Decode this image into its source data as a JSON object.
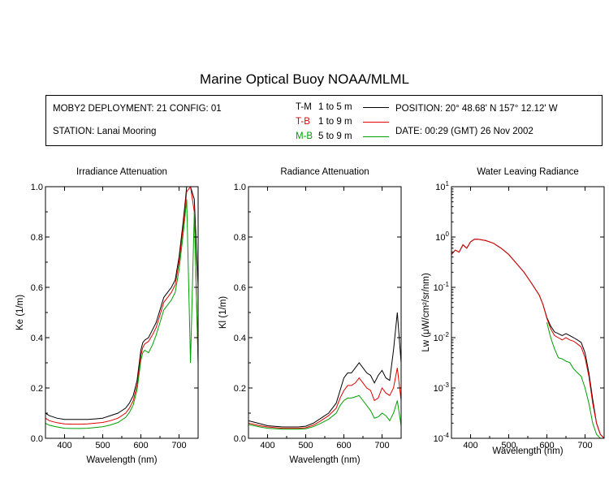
{
  "title": "Marine Optical Buoy NOAA/MLML",
  "info": {
    "deployment": "MOBY2 DEPLOYMENT: 21 CONFIG: 01",
    "station": "STATION: Lanai Mooring",
    "position": "POSITION: 20° 48.68' N   157° 12.12' W",
    "date": "DATE: 00:29 (GMT) 26 Nov 2002"
  },
  "legend": [
    {
      "code": "T-M",
      "range": "1 to 5  m",
      "color": "#000000"
    },
    {
      "code": "T-B",
      "range": "1 to 9  m",
      "color": "#e00000"
    },
    {
      "code": "M-B",
      "range": "5 to 9  m",
      "color": "#00a000"
    }
  ],
  "chart_data": [
    {
      "type": "line",
      "title": "Irradiance Attenuation",
      "xlabel": "Wavelength (nm)",
      "ylabel": "Ke  (1/m)",
      "xlim": [
        350,
        750
      ],
      "ylim": [
        0,
        1.0
      ],
      "xticks": [
        400,
        500,
        600,
        700
      ],
      "yticks": [
        0.0,
        0.2,
        0.4,
        0.6,
        0.8,
        1.0
      ],
      "yticklabels": [
        "0.0",
        "0.2",
        "0.4",
        "0.6",
        "0.8",
        "1.0"
      ],
      "series": [
        {
          "code": "T-M",
          "color": "#000000",
          "x": [
            350,
            360,
            380,
            400,
            420,
            440,
            460,
            480,
            500,
            520,
            540,
            560,
            570,
            580,
            590,
            600,
            605,
            610,
            620,
            630,
            640,
            650,
            660,
            670,
            680,
            690,
            700,
            710,
            715,
            720,
            730,
            740,
            750
          ],
          "y": [
            0.1,
            0.09,
            0.08,
            0.075,
            0.075,
            0.075,
            0.075,
            0.077,
            0.08,
            0.09,
            0.1,
            0.12,
            0.14,
            0.17,
            0.23,
            0.35,
            0.38,
            0.39,
            0.4,
            0.43,
            0.46,
            0.51,
            0.56,
            0.58,
            0.6,
            0.63,
            0.72,
            0.85,
            0.92,
            1.0,
            1.0,
            0.95,
            0.6
          ]
        },
        {
          "code": "T-B",
          "color": "#e00000",
          "x": [
            350,
            360,
            380,
            400,
            420,
            440,
            460,
            480,
            500,
            520,
            540,
            560,
            570,
            580,
            590,
            600,
            605,
            610,
            620,
            630,
            640,
            650,
            660,
            670,
            680,
            690,
            700,
            710,
            715,
            720,
            730,
            740,
            750
          ],
          "y": [
            0.08,
            0.07,
            0.062,
            0.057,
            0.056,
            0.056,
            0.057,
            0.06,
            0.063,
            0.07,
            0.08,
            0.1,
            0.12,
            0.15,
            0.21,
            0.33,
            0.36,
            0.375,
            0.385,
            0.41,
            0.44,
            0.49,
            0.54,
            0.56,
            0.58,
            0.61,
            0.7,
            0.83,
            0.9,
            0.98,
            1.0,
            0.9,
            0.3
          ]
        },
        {
          "code": "M-B",
          "color": "#00a000",
          "x": [
            350,
            360,
            380,
            400,
            420,
            440,
            460,
            480,
            500,
            520,
            540,
            560,
            570,
            580,
            590,
            600,
            605,
            610,
            620,
            630,
            640,
            650,
            660,
            670,
            680,
            690,
            700,
            710,
            715,
            720,
            730,
            740,
            750
          ],
          "y": [
            0.06,
            0.052,
            0.045,
            0.04,
            0.039,
            0.039,
            0.04,
            0.043,
            0.046,
            0.053,
            0.063,
            0.083,
            0.103,
            0.133,
            0.193,
            0.31,
            0.34,
            0.35,
            0.34,
            0.37,
            0.41,
            0.46,
            0.51,
            0.53,
            0.55,
            0.58,
            0.67,
            0.8,
            0.87,
            0.95,
            0.3,
            0.9,
            0.3
          ]
        }
      ]
    },
    {
      "type": "line",
      "title": "Radiance Attenuation",
      "xlabel": "Wavelength (nm)",
      "ylabel": "Kl  (1/m)",
      "xlim": [
        350,
        750
      ],
      "ylim": [
        0,
        1.0
      ],
      "xticks": [
        400,
        500,
        600,
        700
      ],
      "yticks": [
        0.0,
        0.2,
        0.4,
        0.6,
        0.8,
        1.0
      ],
      "yticklabels": [
        "0.0",
        "0.2",
        "0.4",
        "0.6",
        "0.8",
        "1.0"
      ],
      "series": [
        {
          "code": "T-M",
          "color": "#000000",
          "x": [
            350,
            380,
            400,
            440,
            480,
            500,
            520,
            540,
            560,
            580,
            590,
            600,
            610,
            620,
            630,
            640,
            650,
            660,
            670,
            680,
            690,
            700,
            710,
            720,
            730,
            740,
            750
          ],
          "y": [
            0.07,
            0.058,
            0.05,
            0.045,
            0.045,
            0.048,
            0.06,
            0.08,
            0.1,
            0.14,
            0.19,
            0.24,
            0.26,
            0.26,
            0.28,
            0.3,
            0.28,
            0.26,
            0.25,
            0.22,
            0.25,
            0.27,
            0.24,
            0.23,
            0.35,
            0.5,
            0.3
          ]
        },
        {
          "code": "T-B",
          "color": "#e00000",
          "x": [
            350,
            380,
            400,
            440,
            480,
            500,
            520,
            540,
            560,
            580,
            590,
            600,
            610,
            620,
            630,
            640,
            650,
            660,
            670,
            680,
            690,
            700,
            710,
            720,
            730,
            740,
            750
          ],
          "y": [
            0.06,
            0.05,
            0.045,
            0.04,
            0.04,
            0.042,
            0.052,
            0.07,
            0.09,
            0.12,
            0.16,
            0.19,
            0.21,
            0.21,
            0.22,
            0.24,
            0.22,
            0.2,
            0.19,
            0.15,
            0.16,
            0.2,
            0.18,
            0.17,
            0.2,
            0.28,
            0.15
          ]
        },
        {
          "code": "M-B",
          "color": "#00a000",
          "x": [
            350,
            380,
            400,
            440,
            480,
            500,
            520,
            540,
            560,
            580,
            590,
            600,
            610,
            620,
            630,
            640,
            650,
            660,
            670,
            680,
            690,
            700,
            710,
            720,
            730,
            740,
            750
          ],
          "y": [
            0.055,
            0.045,
            0.04,
            0.036,
            0.036,
            0.038,
            0.046,
            0.06,
            0.076,
            0.1,
            0.13,
            0.15,
            0.16,
            0.16,
            0.165,
            0.17,
            0.15,
            0.13,
            0.11,
            0.08,
            0.085,
            0.1,
            0.09,
            0.07,
            0.1,
            0.15,
            0.05
          ]
        }
      ]
    },
    {
      "type": "line",
      "title": "Water Leaving Radiance",
      "xlabel": "Wavelength (nm)",
      "ylabel": "Lw  (μW/cm²/sr/nm)",
      "xlim": [
        350,
        750
      ],
      "ylim": [
        0.0001,
        10
      ],
      "yscale": "log",
      "xticks": [
        400,
        500,
        600,
        700
      ],
      "yticks": [
        0.0001,
        0.001,
        0.01,
        0.1,
        1,
        10
      ],
      "yticklabels": [
        [
          "10",
          "-4"
        ],
        [
          "10",
          "-3"
        ],
        [
          "10",
          "-2"
        ],
        [
          "10",
          "-1"
        ],
        [
          "10",
          "0"
        ],
        [
          "10",
          "1"
        ]
      ],
      "series": [
        {
          "code": "T-M",
          "color": "#000000",
          "x": [
            350,
            360,
            370,
            380,
            390,
            400,
            410,
            420,
            440,
            460,
            480,
            500,
            520,
            540,
            560,
            580,
            590,
            600,
            610,
            620,
            630,
            640,
            650,
            660,
            670,
            680,
            690,
            700,
            710,
            720,
            730,
            740,
            750
          ],
          "y": [
            0.45,
            0.55,
            0.5,
            0.7,
            0.6,
            0.8,
            0.9,
            0.9,
            0.85,
            0.75,
            0.6,
            0.45,
            0.3,
            0.2,
            0.12,
            0.07,
            0.045,
            0.025,
            0.017,
            0.013,
            0.012,
            0.011,
            0.012,
            0.011,
            0.01,
            0.009,
            0.008,
            0.005,
            0.002,
            0.0006,
            0.0002,
            0.00012,
            0.0001
          ]
        },
        {
          "code": "T-B",
          "color": "#e00000",
          "x": [
            350,
            360,
            370,
            380,
            390,
            400,
            410,
            420,
            440,
            460,
            480,
            500,
            520,
            540,
            560,
            580,
            590,
            600,
            610,
            620,
            630,
            640,
            650,
            660,
            670,
            680,
            690,
            700,
            710,
            720,
            730,
            740,
            750
          ],
          "y": [
            0.45,
            0.55,
            0.5,
            0.7,
            0.6,
            0.8,
            0.9,
            0.9,
            0.85,
            0.75,
            0.6,
            0.45,
            0.3,
            0.2,
            0.12,
            0.07,
            0.045,
            0.024,
            0.015,
            0.011,
            0.01,
            0.009,
            0.01,
            0.009,
            0.0085,
            0.0075,
            0.0065,
            0.004,
            0.0017,
            0.0005,
            0.0002,
            0.00012,
            0.0001
          ]
        },
        {
          "code": "M-B",
          "color": "#00a000",
          "x": [
            600,
            610,
            620,
            630,
            640,
            650,
            660,
            670,
            680,
            690,
            700,
            710,
            720,
            730,
            740
          ],
          "y": [
            0.02,
            0.01,
            0.006,
            0.004,
            0.0038,
            0.0034,
            0.0032,
            0.0024,
            0.002,
            0.0017,
            0.001,
            0.0005,
            0.0002,
            0.00012,
            0.0001
          ]
        }
      ]
    }
  ]
}
